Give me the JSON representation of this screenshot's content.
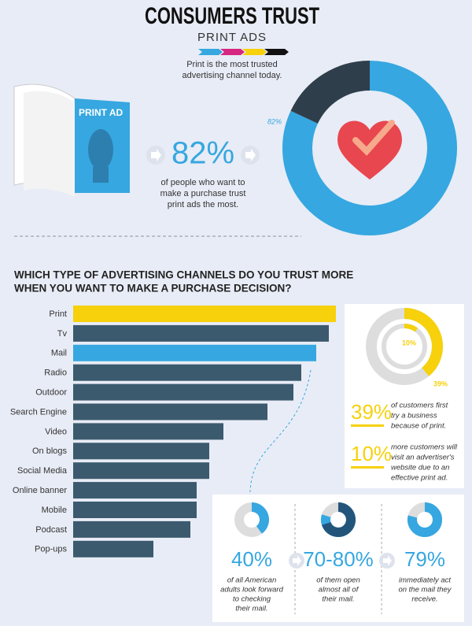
{
  "header": {
    "title": "CONSUMERS TRUST",
    "subtitle": "PRINT ADS",
    "tagline": [
      "Print is the most trusted",
      "advertising channel today."
    ]
  },
  "magazine_label": "PRINT AD",
  "hero": {
    "stat": "82%",
    "text": [
      "of people who want to",
      "make a purchase trust",
      "print ads the most."
    ]
  },
  "chart_data": [
    {
      "type": "donut",
      "values": [
        82,
        18
      ],
      "value_labels": [
        "82%",
        null
      ],
      "colors": [
        "#36a7e0",
        "#2f3e4b"
      ]
    },
    {
      "type": "bar",
      "title": [
        "WHICH TYPE OF ADVERTISING CHANNELS DO YOU TRUST MORE",
        "WHEN YOU WANT TO MAKE A PURCHASE DECISION?"
      ],
      "categories": [
        "Print",
        "Tv",
        "Mail",
        "Radio",
        "Outdoor",
        "Search Engine",
        "Video",
        "On blogs",
        "Social Media",
        "Online banner",
        "Mobile",
        "Podcast",
        "Pop-ups"
      ],
      "values": [
        334,
        325,
        309,
        290,
        280,
        247,
        191,
        173,
        173,
        157,
        157,
        149,
        102
      ],
      "colors": [
        "#f6d10c",
        "#3b5a6e",
        "#36a7e0",
        "#3b5a6e",
        "#3b5a6e",
        "#3b5a6e",
        "#3b5a6e",
        "#3b5a6e",
        "#3b5a6e",
        "#3b5a6e",
        "#3b5a6e",
        "#3b5a6e",
        "#3b5a6e"
      ],
      "xlim": [
        0,
        340
      ]
    },
    {
      "type": "rings",
      "values": [
        39,
        10
      ],
      "value_labels": [
        "39%",
        "10%"
      ],
      "color": "#f6d10c",
      "texts": [
        [
          "of customers first",
          "try a business",
          "because of print."
        ],
        [
          "more customers will",
          "visit an advertiser's",
          "website due to an",
          "effective print ad."
        ]
      ]
    },
    {
      "type": "mini-donuts",
      "series": [
        {
          "values": [
            40
          ],
          "label": "40%",
          "text": [
            "of all American",
            "adults look forward",
            "to checking",
            "their mail."
          ]
        },
        {
          "values": [
            70,
            80
          ],
          "label": "70-80%",
          "text": [
            "of them open",
            "almost all of",
            "their mail."
          ]
        },
        {
          "values": [
            79
          ],
          "label": "79%",
          "text": [
            "immediately act",
            "on the mail they",
            "receive."
          ]
        }
      ]
    }
  ]
}
